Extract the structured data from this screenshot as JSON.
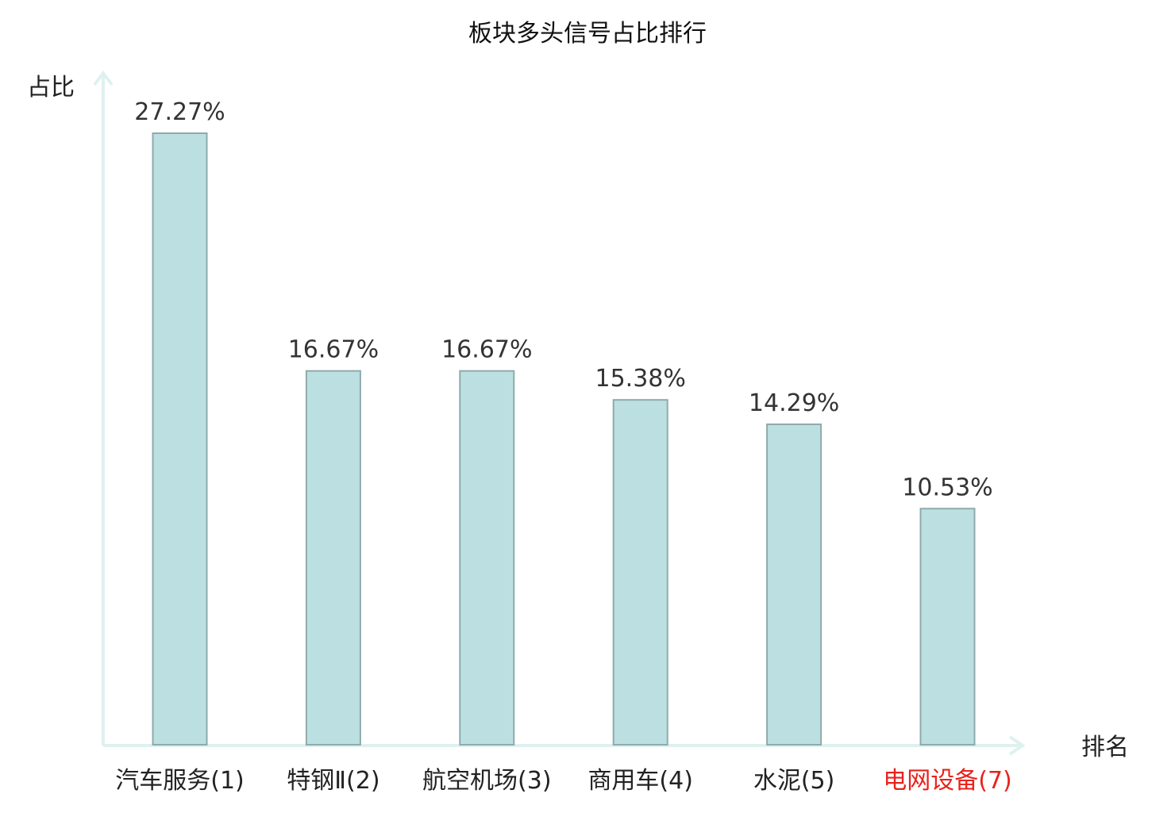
{
  "chart_data": {
    "type": "bar",
    "title": "板块多头信号占比排行",
    "ylabel": "占比",
    "xlabel": "排名",
    "categories": [
      "汽车服务(1)",
      "特钢Ⅱ(2)",
      "航空机场(3)",
      "商用车(4)",
      "水泥(5)",
      "电网设备(7)"
    ],
    "values": [
      27.27,
      16.67,
      16.67,
      15.38,
      14.29,
      10.53
    ],
    "value_labels": [
      "27.27%",
      "16.67%",
      "16.67%",
      "15.38%",
      "14.29%",
      "10.53%"
    ],
    "highlighted_category_index": 5,
    "ylim": [
      0,
      27.27
    ],
    "grid": false,
    "legend": "none",
    "colors": {
      "bar_fill": "#bce0e2",
      "bar_stroke": "#8faaab",
      "axis": "#dff1ef",
      "text": "#222222",
      "value_label": "#333333",
      "highlight": "#e8221c"
    }
  }
}
